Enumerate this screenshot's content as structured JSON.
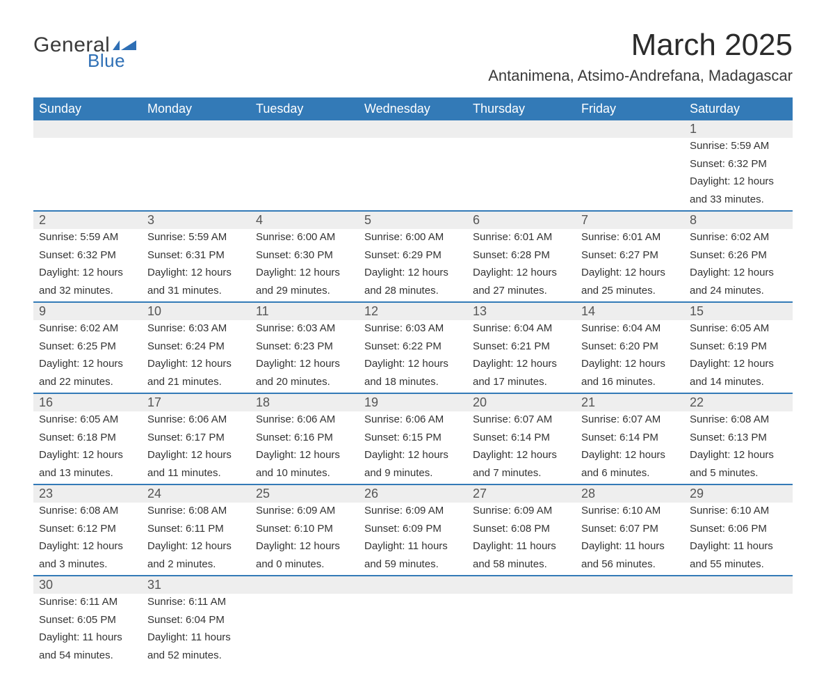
{
  "logo": {
    "text1": "General",
    "text2": "Blue",
    "flag_color": "#2e6fb5"
  },
  "header": {
    "month_title": "March 2025",
    "location": "Antanimena, Atsimo-Andrefana, Madagascar"
  },
  "colors": {
    "header_bg": "#337ab7",
    "header_text": "#ffffff",
    "daynum_bg": "#eeeeee",
    "body_bg": "#ffffff",
    "text": "#333333"
  },
  "day_names": [
    "Sunday",
    "Monday",
    "Tuesday",
    "Wednesday",
    "Thursday",
    "Friday",
    "Saturday"
  ],
  "weeks": [
    [
      null,
      null,
      null,
      null,
      null,
      null,
      {
        "n": "1",
        "sr": "Sunrise: 5:59 AM",
        "ss": "Sunset: 6:32 PM",
        "d1": "Daylight: 12 hours",
        "d2": "and 33 minutes."
      }
    ],
    [
      {
        "n": "2",
        "sr": "Sunrise: 5:59 AM",
        "ss": "Sunset: 6:32 PM",
        "d1": "Daylight: 12 hours",
        "d2": "and 32 minutes."
      },
      {
        "n": "3",
        "sr": "Sunrise: 5:59 AM",
        "ss": "Sunset: 6:31 PM",
        "d1": "Daylight: 12 hours",
        "d2": "and 31 minutes."
      },
      {
        "n": "4",
        "sr": "Sunrise: 6:00 AM",
        "ss": "Sunset: 6:30 PM",
        "d1": "Daylight: 12 hours",
        "d2": "and 29 minutes."
      },
      {
        "n": "5",
        "sr": "Sunrise: 6:00 AM",
        "ss": "Sunset: 6:29 PM",
        "d1": "Daylight: 12 hours",
        "d2": "and 28 minutes."
      },
      {
        "n": "6",
        "sr": "Sunrise: 6:01 AM",
        "ss": "Sunset: 6:28 PM",
        "d1": "Daylight: 12 hours",
        "d2": "and 27 minutes."
      },
      {
        "n": "7",
        "sr": "Sunrise: 6:01 AM",
        "ss": "Sunset: 6:27 PM",
        "d1": "Daylight: 12 hours",
        "d2": "and 25 minutes."
      },
      {
        "n": "8",
        "sr": "Sunrise: 6:02 AM",
        "ss": "Sunset: 6:26 PM",
        "d1": "Daylight: 12 hours",
        "d2": "and 24 minutes."
      }
    ],
    [
      {
        "n": "9",
        "sr": "Sunrise: 6:02 AM",
        "ss": "Sunset: 6:25 PM",
        "d1": "Daylight: 12 hours",
        "d2": "and 22 minutes."
      },
      {
        "n": "10",
        "sr": "Sunrise: 6:03 AM",
        "ss": "Sunset: 6:24 PM",
        "d1": "Daylight: 12 hours",
        "d2": "and 21 minutes."
      },
      {
        "n": "11",
        "sr": "Sunrise: 6:03 AM",
        "ss": "Sunset: 6:23 PM",
        "d1": "Daylight: 12 hours",
        "d2": "and 20 minutes."
      },
      {
        "n": "12",
        "sr": "Sunrise: 6:03 AM",
        "ss": "Sunset: 6:22 PM",
        "d1": "Daylight: 12 hours",
        "d2": "and 18 minutes."
      },
      {
        "n": "13",
        "sr": "Sunrise: 6:04 AM",
        "ss": "Sunset: 6:21 PM",
        "d1": "Daylight: 12 hours",
        "d2": "and 17 minutes."
      },
      {
        "n": "14",
        "sr": "Sunrise: 6:04 AM",
        "ss": "Sunset: 6:20 PM",
        "d1": "Daylight: 12 hours",
        "d2": "and 16 minutes."
      },
      {
        "n": "15",
        "sr": "Sunrise: 6:05 AM",
        "ss": "Sunset: 6:19 PM",
        "d1": "Daylight: 12 hours",
        "d2": "and 14 minutes."
      }
    ],
    [
      {
        "n": "16",
        "sr": "Sunrise: 6:05 AM",
        "ss": "Sunset: 6:18 PM",
        "d1": "Daylight: 12 hours",
        "d2": "and 13 minutes."
      },
      {
        "n": "17",
        "sr": "Sunrise: 6:06 AM",
        "ss": "Sunset: 6:17 PM",
        "d1": "Daylight: 12 hours",
        "d2": "and 11 minutes."
      },
      {
        "n": "18",
        "sr": "Sunrise: 6:06 AM",
        "ss": "Sunset: 6:16 PM",
        "d1": "Daylight: 12 hours",
        "d2": "and 10 minutes."
      },
      {
        "n": "19",
        "sr": "Sunrise: 6:06 AM",
        "ss": "Sunset: 6:15 PM",
        "d1": "Daylight: 12 hours",
        "d2": "and 9 minutes."
      },
      {
        "n": "20",
        "sr": "Sunrise: 6:07 AM",
        "ss": "Sunset: 6:14 PM",
        "d1": "Daylight: 12 hours",
        "d2": "and 7 minutes."
      },
      {
        "n": "21",
        "sr": "Sunrise: 6:07 AM",
        "ss": "Sunset: 6:14 PM",
        "d1": "Daylight: 12 hours",
        "d2": "and 6 minutes."
      },
      {
        "n": "22",
        "sr": "Sunrise: 6:08 AM",
        "ss": "Sunset: 6:13 PM",
        "d1": "Daylight: 12 hours",
        "d2": "and 5 minutes."
      }
    ],
    [
      {
        "n": "23",
        "sr": "Sunrise: 6:08 AM",
        "ss": "Sunset: 6:12 PM",
        "d1": "Daylight: 12 hours",
        "d2": "and 3 minutes."
      },
      {
        "n": "24",
        "sr": "Sunrise: 6:08 AM",
        "ss": "Sunset: 6:11 PM",
        "d1": "Daylight: 12 hours",
        "d2": "and 2 minutes."
      },
      {
        "n": "25",
        "sr": "Sunrise: 6:09 AM",
        "ss": "Sunset: 6:10 PM",
        "d1": "Daylight: 12 hours",
        "d2": "and 0 minutes."
      },
      {
        "n": "26",
        "sr": "Sunrise: 6:09 AM",
        "ss": "Sunset: 6:09 PM",
        "d1": "Daylight: 11 hours",
        "d2": "and 59 minutes."
      },
      {
        "n": "27",
        "sr": "Sunrise: 6:09 AM",
        "ss": "Sunset: 6:08 PM",
        "d1": "Daylight: 11 hours",
        "d2": "and 58 minutes."
      },
      {
        "n": "28",
        "sr": "Sunrise: 6:10 AM",
        "ss": "Sunset: 6:07 PM",
        "d1": "Daylight: 11 hours",
        "d2": "and 56 minutes."
      },
      {
        "n": "29",
        "sr": "Sunrise: 6:10 AM",
        "ss": "Sunset: 6:06 PM",
        "d1": "Daylight: 11 hours",
        "d2": "and 55 minutes."
      }
    ],
    [
      {
        "n": "30",
        "sr": "Sunrise: 6:11 AM",
        "ss": "Sunset: 6:05 PM",
        "d1": "Daylight: 11 hours",
        "d2": "and 54 minutes."
      },
      {
        "n": "31",
        "sr": "Sunrise: 6:11 AM",
        "ss": "Sunset: 6:04 PM",
        "d1": "Daylight: 11 hours",
        "d2": "and 52 minutes."
      },
      null,
      null,
      null,
      null,
      null
    ]
  ]
}
